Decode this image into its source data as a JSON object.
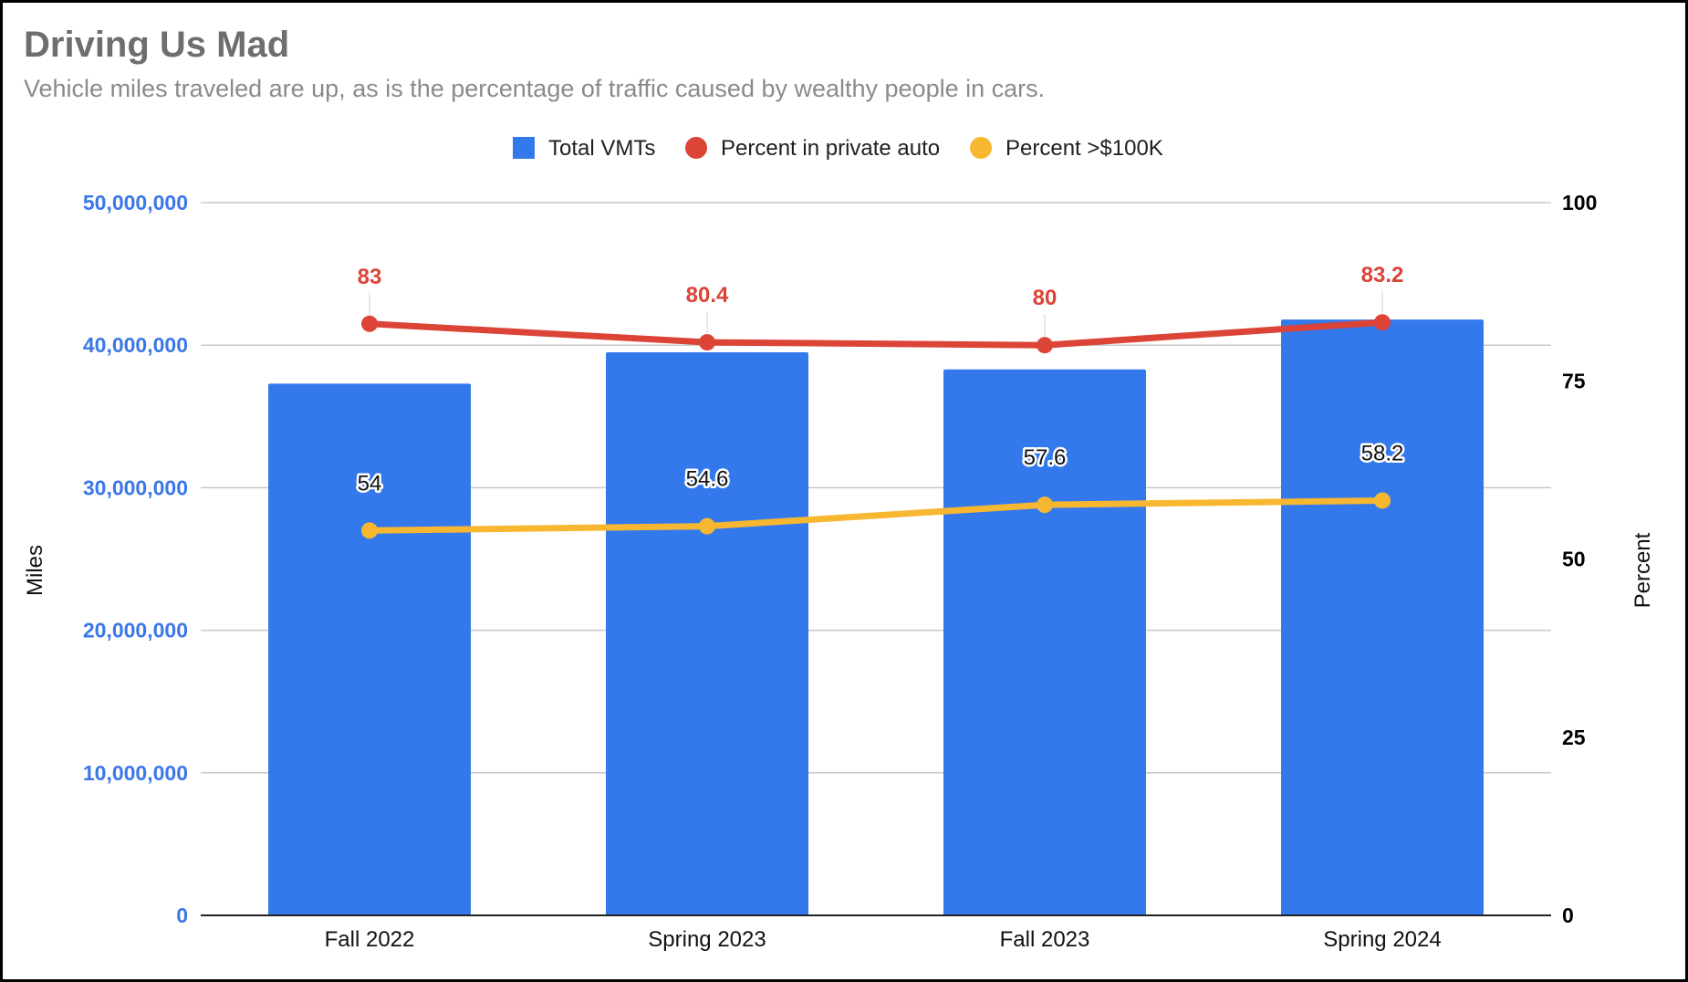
{
  "chart_data": {
    "type": "bar",
    "title": "Driving Us Mad",
    "subtitle": "Vehicle miles traveled are up, as is the percentage of traffic caused by wealthy people in cars.",
    "categories": [
      "Fall 2022",
      "Spring 2023",
      "Fall 2023",
      "Spring 2024"
    ],
    "series": [
      {
        "name": "Total VMTs",
        "type": "bar",
        "axis": "left",
        "color": "#3479ec",
        "values": [
          37300000,
          39500000,
          38300000,
          41800000
        ]
      },
      {
        "name": "Percent in private auto",
        "type": "line",
        "axis": "right",
        "color": "#db4437",
        "values": [
          83,
          80.4,
          80,
          83.2
        ],
        "labels": [
          "83",
          "80.4",
          "80",
          "83.2"
        ]
      },
      {
        "name": "Percent >$100K",
        "type": "line",
        "axis": "right",
        "color": "#f7b731",
        "values": [
          54,
          54.6,
          57.6,
          58.2
        ],
        "labels": [
          "54",
          "54.6",
          "57.6",
          "58.2"
        ]
      }
    ],
    "y_left": {
      "label": "Miles",
      "range": [
        0,
        50000000
      ],
      "ticks": [
        0,
        10000000,
        20000000,
        30000000,
        40000000,
        50000000
      ],
      "tick_labels": [
        "0",
        "10,000,000",
        "20,000,000",
        "30,000,000",
        "40,000,000",
        "50,000,000"
      ],
      "color": "#3b78e7"
    },
    "y_right": {
      "label": "Percent",
      "range": [
        0,
        100
      ],
      "ticks": [
        0,
        25,
        50,
        75,
        100
      ],
      "tick_labels": [
        "0",
        "25",
        "50",
        "75",
        "100"
      ]
    },
    "grid": true,
    "legend_position": "top-center"
  }
}
